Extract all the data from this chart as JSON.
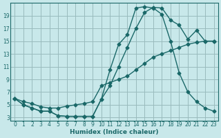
{
  "xlabel": "Humidex (Indice chaleur)",
  "bg_color": "#c8e8ea",
  "grid_color": "#99bbbd",
  "line_color": "#1a6868",
  "xlim": [
    -0.5,
    23.5
  ],
  "ylim": [
    2.5,
    21.0
  ],
  "xticks": [
    0,
    1,
    2,
    3,
    4,
    5,
    6,
    7,
    8,
    9,
    10,
    11,
    12,
    13,
    14,
    15,
    16,
    17,
    18,
    19,
    20,
    21,
    22,
    23
  ],
  "yticks": [
    3,
    5,
    7,
    9,
    11,
    13,
    15,
    17,
    19
  ],
  "curve1_x": [
    0,
    1,
    2,
    3,
    4,
    5,
    6,
    7,
    8,
    9,
    10,
    11,
    12,
    13,
    14,
    15,
    16,
    17,
    18,
    19,
    20,
    21,
    22,
    23
  ],
  "curve1_y": [
    6.0,
    5.0,
    4.5,
    4.0,
    4.0,
    3.3,
    3.2,
    3.2,
    3.2,
    3.2,
    5.9,
    10.5,
    14.5,
    16.0,
    20.2,
    20.4,
    20.2,
    19.2,
    15.0,
    10.0,
    7.0,
    5.5,
    4.5,
    4.0
  ],
  "curve2_x": [
    0,
    1,
    2,
    3,
    4,
    5,
    6,
    7,
    8,
    9,
    10,
    11,
    12,
    13,
    14,
    15,
    16,
    17,
    18,
    19,
    20,
    21,
    22,
    23
  ],
  "curve2_y": [
    6.0,
    5.0,
    4.5,
    4.0,
    4.0,
    3.3,
    3.2,
    3.2,
    3.2,
    3.2,
    5.9,
    8.0,
    11.0,
    14.0,
    17.0,
    19.5,
    20.3,
    20.2,
    18.3,
    17.5,
    15.3,
    16.7,
    15.0,
    15.0
  ],
  "curve3_x": [
    0,
    1,
    2,
    3,
    4,
    5,
    6,
    7,
    8,
    9,
    10,
    11,
    12,
    13,
    14,
    15,
    16,
    17,
    18,
    19,
    20,
    21,
    22,
    23
  ],
  "curve3_y": [
    6.0,
    5.5,
    5.2,
    4.7,
    4.5,
    4.5,
    4.8,
    5.0,
    5.2,
    5.5,
    8.0,
    8.5,
    9.0,
    9.5,
    10.5,
    11.5,
    12.5,
    13.0,
    13.5,
    14.0,
    14.5,
    14.8,
    15.0,
    15.0
  ]
}
